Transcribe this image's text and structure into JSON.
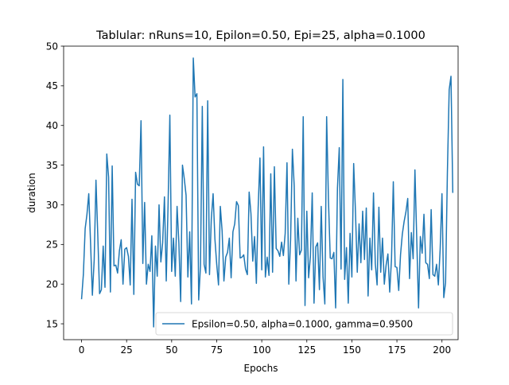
{
  "chart_data": {
    "type": "line",
    "title": "Tablular: nRuns=10, Epilon=0.50, Epi=25, alpha=0.1000",
    "xlabel": "Epochs",
    "ylabel": "duration",
    "xlim": [
      -9.95,
      208.95
    ],
    "ylim": [
      13.0,
      50.0
    ],
    "xticks": [
      0,
      25,
      50,
      75,
      100,
      125,
      150,
      175,
      200
    ],
    "yticks": [
      15,
      20,
      25,
      30,
      35,
      40,
      45,
      50
    ],
    "grid": false,
    "legend_position": "lower-right",
    "series": [
      {
        "name": "Epsilon=0.50, alpha=0.1000, gamma=0.9500",
        "color": "#1f77b4",
        "x_start": 0,
        "x_step": 1,
        "y": [
          18.1,
          21.2,
          27.0,
          28.8,
          31.4,
          25.2,
          18.6,
          23.0,
          33.1,
          26.2,
          18.8,
          19.3,
          24.8,
          19.6,
          36.4,
          33.5,
          19.0,
          34.9,
          22.3,
          22.4,
          21.4,
          24.2,
          25.6,
          20.0,
          24.4,
          24.6,
          23.5,
          19.9,
          30.7,
          18.7,
          34.1,
          32.6,
          32.4,
          40.6,
          22.6,
          30.3,
          20.0,
          22.5,
          21.6,
          26.1,
          14.6,
          24.8,
          21.0,
          30.0,
          22.8,
          25.2,
          31.0,
          20.4,
          29.9,
          41.3,
          21.6,
          25.8,
          21.0,
          29.8,
          25.2,
          17.8,
          35.0,
          33.3,
          31.2,
          20.9,
          26.6,
          17.5,
          48.5,
          43.6,
          44.0,
          18.0,
          22.3,
          42.4,
          22.5,
          21.4,
          43.1,
          21.2,
          28.2,
          31.4,
          25.7,
          22.5,
          19.9,
          29.8,
          26.7,
          20.4,
          23.4,
          24.0,
          25.8,
          20.8,
          26.6,
          27.6,
          30.4,
          29.9,
          23.3,
          23.4,
          23.7,
          21.9,
          21.2,
          31.6,
          28.9,
          22.9,
          26.0,
          20.1,
          29.6,
          35.9,
          21.8,
          37.3,
          20.9,
          23.4,
          21.1,
          33.9,
          21.5,
          34.8,
          24.5,
          24.2,
          23.5,
          25.3,
          23.6,
          26.4,
          35.3,
          20.0,
          25.6,
          37.0,
          32.4,
          20.4,
          28.3,
          23.7,
          24.3,
          41.1,
          17.3,
          29.2,
          20.8,
          23.5,
          31.5,
          17.6,
          24.7,
          25.2,
          19.3,
          29.8,
          20.9,
          17.5,
          41.1,
          30.7,
          23.3,
          23.2,
          24.0,
          17.0,
          32.1,
          37.2,
          21.9,
          45.8,
          20.6,
          24.6,
          17.6,
          26.4,
          20.9,
          35.2,
          29.1,
          21.5,
          27.6,
          22.7,
          29.2,
          23.1,
          29.6,
          18.5,
          25.8,
          21.8,
          31.5,
          22.6,
          19.9,
          29.7,
          21.5,
          25.8,
          20.0,
          22.4,
          23.8,
          19.0,
          23.2,
          32.9,
          22.2,
          22.1,
          19.2,
          23.7,
          26.3,
          27.9,
          29.1,
          30.8,
          20.7,
          26.5,
          23.2,
          34.4,
          25.7,
          17.0,
          26.0,
          23.9,
          28.8,
          22.7,
          22.5,
          20.7,
          29.4,
          21.2,
          21.0,
          22.5,
          19.9,
          24.4,
          31.4,
          18.3,
          20.2,
          34.0,
          44.5,
          46.2,
          31.5
        ]
      }
    ]
  }
}
